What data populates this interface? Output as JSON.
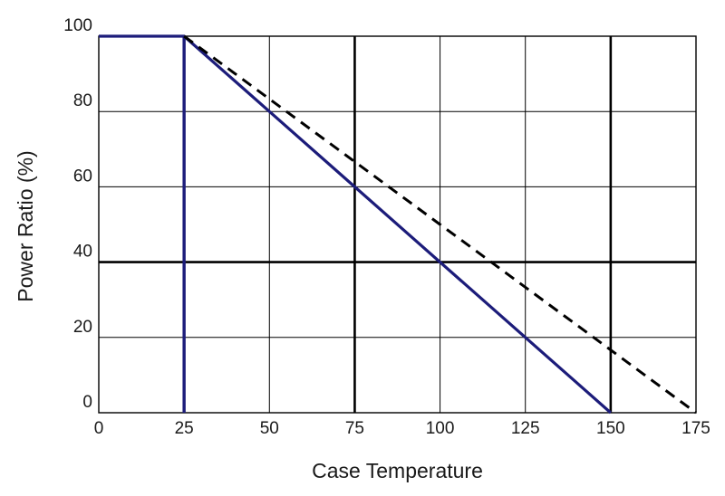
{
  "chart_data": {
    "type": "line",
    "title": "",
    "xlabel": "Case Temperature",
    "ylabel": "Power Ratio (%)",
    "xlim": [
      0,
      175
    ],
    "ylim": [
      0,
      100
    ],
    "x_ticks": [
      "0",
      "25",
      "50",
      "75",
      "100",
      "125",
      "150",
      "175"
    ],
    "y_ticks": [
      "0",
      "20",
      "40",
      "60",
      "80",
      "100"
    ],
    "grid": true,
    "legend": "none",
    "series": [
      {
        "style": "solid",
        "color": "#1c1c7a",
        "points": [
          [
            0,
            100
          ],
          [
            25,
            100
          ],
          [
            150,
            0
          ]
        ],
        "vertical_drop_at_x": 25
      },
      {
        "style": "dashed",
        "color": "#000000",
        "points": [
          [
            25,
            100
          ],
          [
            175,
            0
          ]
        ]
      }
    ],
    "reference_lines": [
      {
        "axis": "x",
        "value": 75
      },
      {
        "axis": "x",
        "value": 150
      },
      {
        "axis": "y",
        "value": 40
      }
    ]
  }
}
